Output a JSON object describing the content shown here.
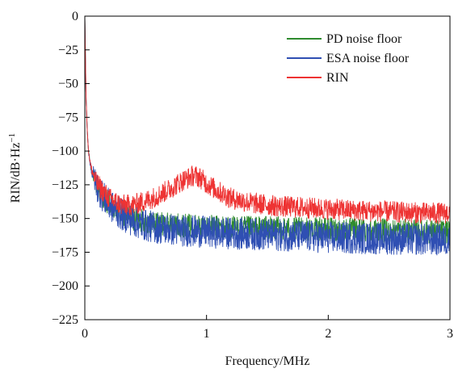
{
  "chart_data": {
    "type": "line",
    "title": "",
    "xlabel": "Frequency/MHz",
    "ylabel_main": "RIN/dB·Hz",
    "ylabel_sup": "−1",
    "xlim": [
      0,
      3
    ],
    "ylim": [
      -225,
      0
    ],
    "x_ticks": [
      0,
      1,
      2,
      3
    ],
    "x_tick_labels": [
      "0",
      "1",
      "2",
      "3"
    ],
    "y_ticks": [
      0,
      -25,
      -50,
      -75,
      -100,
      -125,
      -150,
      -175,
      -200,
      -225
    ],
    "y_tick_labels": [
      "0",
      "−25",
      "−50",
      "−75",
      "−100",
      "−125",
      "−150",
      "−175",
      "−200",
      "−225"
    ],
    "grid": false,
    "legend_position": "top-right",
    "series": [
      {
        "name": "PD noise floor",
        "color": "#2e8b2e",
        "x": [
          0.0,
          0.01,
          0.02,
          0.03,
          0.05,
          0.08,
          0.1,
          0.15,
          0.2,
          0.3,
          0.4,
          0.5,
          0.6,
          0.8,
          1.0,
          1.2,
          1.5,
          1.8,
          2.0,
          2.5,
          3.0
        ],
        "y": [
          0,
          -60,
          -85,
          -100,
          -112,
          -121,
          -126,
          -134,
          -140,
          -146,
          -150,
          -152,
          -154,
          -155,
          -156,
          -157,
          -157,
          -158,
          -158,
          -159,
          -160
        ],
        "noise": 9
      },
      {
        "name": "ESA noise floor",
        "color": "#2f4fb3",
        "x": [
          0.0,
          0.01,
          0.02,
          0.03,
          0.05,
          0.08,
          0.1,
          0.15,
          0.2,
          0.3,
          0.4,
          0.5,
          0.6,
          0.8,
          1.0,
          1.2,
          1.5,
          1.8,
          2.0,
          2.5,
          3.0
        ],
        "y": [
          0,
          -60,
          -85,
          -100,
          -112,
          -121,
          -126,
          -134,
          -140,
          -147,
          -152,
          -155,
          -157,
          -159,
          -160,
          -161,
          -162,
          -163,
          -164,
          -165,
          -166
        ],
        "noise": 12
      },
      {
        "name": "RIN",
        "color": "#ee3333",
        "x": [
          0.0,
          0.01,
          0.02,
          0.03,
          0.05,
          0.08,
          0.1,
          0.15,
          0.2,
          0.3,
          0.4,
          0.5,
          0.6,
          0.7,
          0.8,
          0.9,
          0.95,
          1.0,
          1.1,
          1.2,
          1.4,
          1.6,
          1.8,
          2.0,
          2.2,
          2.5,
          2.8,
          3.0
        ],
        "y": [
          0,
          -60,
          -85,
          -100,
          -112,
          -120,
          -124,
          -130,
          -135,
          -140,
          -140,
          -137,
          -133,
          -128,
          -122,
          -118,
          -120,
          -124,
          -130,
          -135,
          -139,
          -141,
          -142,
          -143,
          -144,
          -145,
          -146,
          -146
        ],
        "noise": 8
      }
    ]
  }
}
